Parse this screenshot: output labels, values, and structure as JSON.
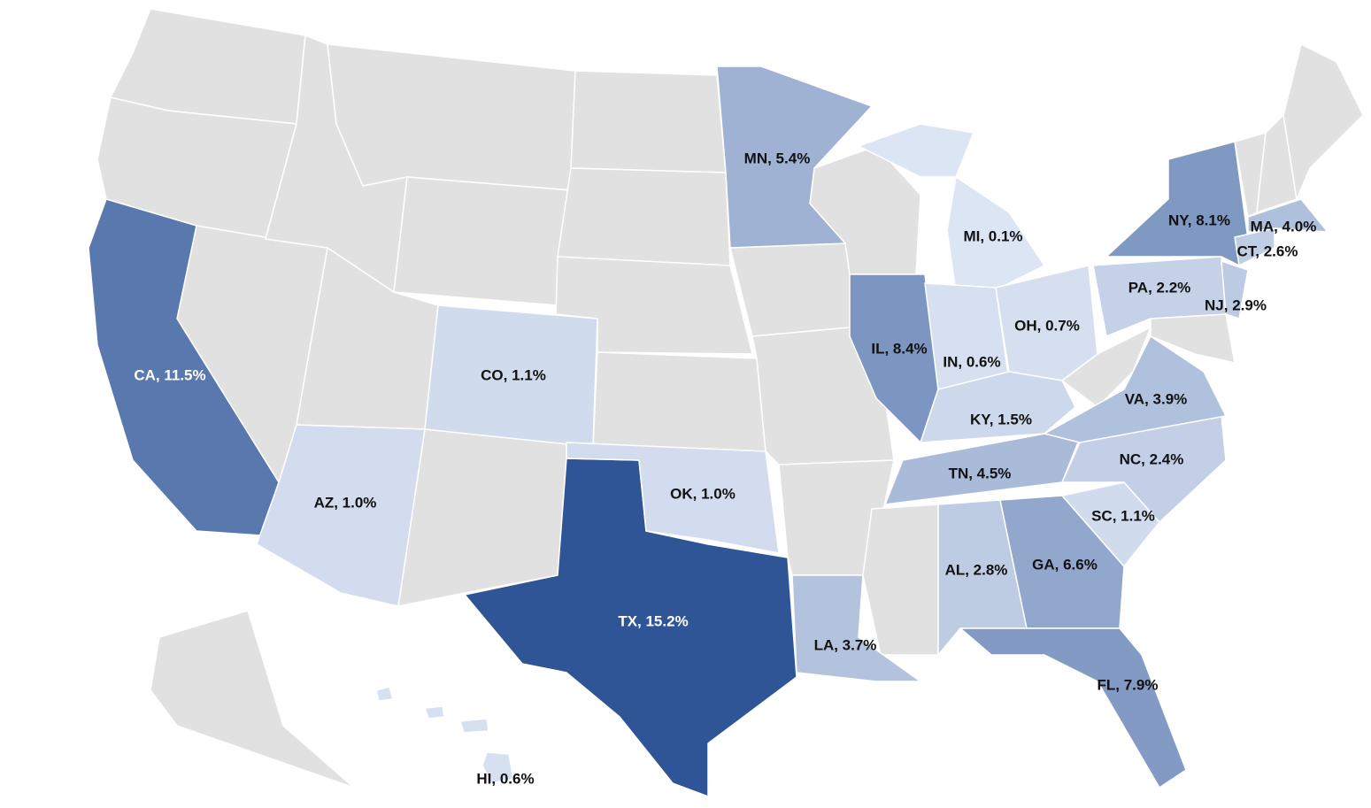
{
  "chart_data": {
    "type": "choropleth",
    "no_data_color": "#e1e1e1",
    "color_scale": [
      "#dce5f4",
      "#2f5597"
    ],
    "regions": [
      {
        "label": "CA, 11.5%",
        "value": 11.5
      },
      {
        "label": "TX, 15.2%",
        "value": 15.2
      },
      {
        "label": "AZ, 1.0%",
        "value": 1.0
      },
      {
        "label": "CO, 1.1%",
        "value": 1.1
      },
      {
        "label": "OK, 1.0%",
        "value": 1.0
      },
      {
        "label": "MN, 5.4%",
        "value": 5.4
      },
      {
        "label": "LA, 3.7%",
        "value": 3.7
      },
      {
        "label": "IL, 8.4%",
        "value": 8.4
      },
      {
        "label": "MI, 0.1%",
        "value": 0.1
      },
      {
        "label": "IN, 0.6%",
        "value": 0.6
      },
      {
        "label": "OH, 0.7%",
        "value": 0.7
      },
      {
        "label": "KY, 1.5%",
        "value": 1.5
      },
      {
        "label": "TN, 4.5%",
        "value": 4.5
      },
      {
        "label": "AL, 2.8%",
        "value": 2.8
      },
      {
        "label": "GA, 6.6%",
        "value": 6.6
      },
      {
        "label": "FL, 7.9%",
        "value": 7.9
      },
      {
        "label": "SC, 1.1%",
        "value": 1.1
      },
      {
        "label": "NC, 2.4%",
        "value": 2.4
      },
      {
        "label": "VA, 3.9%",
        "value": 3.9
      },
      {
        "label": "PA, 2.2%",
        "value": 2.2
      },
      {
        "label": "NJ, 2.9%",
        "value": 2.9
      },
      {
        "label": "NY, 8.1%",
        "value": 8.1
      },
      {
        "label": "CT, 2.6%",
        "value": 2.6
      },
      {
        "label": "MA, 4.0%",
        "value": 4.0
      },
      {
        "label": "HI, 0.6%",
        "value": 0.6
      }
    ]
  }
}
